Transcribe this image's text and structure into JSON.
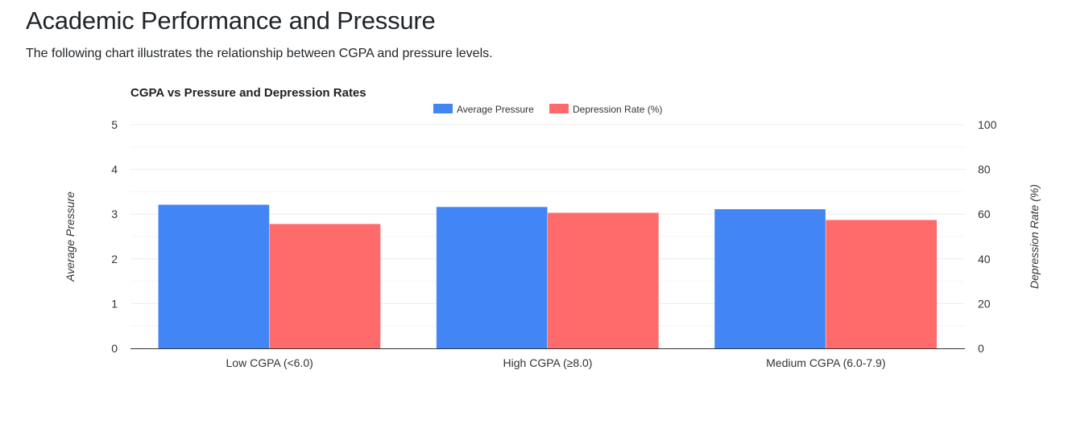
{
  "page": {
    "title": "Academic Performance and Pressure",
    "subtitle": "The following chart illustrates the relationship between CGPA and pressure levels."
  },
  "chart_data": {
    "type": "bar",
    "title": "CGPA vs Pressure and Depression Rates",
    "categories": [
      "Low CGPA (<6.0)",
      "High CGPA (≥8.0)",
      "Medium CGPA (6.0-7.9)"
    ],
    "series": [
      {
        "name": "Average Pressure",
        "axis": "left",
        "color": "#4285f4",
        "values": [
          3.21,
          3.16,
          3.11
        ]
      },
      {
        "name": "Depression Rate (%)",
        "axis": "right",
        "color": "#ff6b6b",
        "values": [
          55.6,
          60.6,
          57.4
        ]
      }
    ],
    "y_left": {
      "label": "Average Pressure",
      "range": [
        0,
        5
      ],
      "ticks": [
        "0",
        "1",
        "2",
        "3",
        "4",
        "5"
      ]
    },
    "y_right": {
      "label": "Depression Rate (%)",
      "range": [
        0,
        100
      ],
      "ticks": [
        "0",
        "20",
        "40",
        "60",
        "80",
        "100"
      ]
    },
    "grid": true,
    "legend": "top-center"
  }
}
